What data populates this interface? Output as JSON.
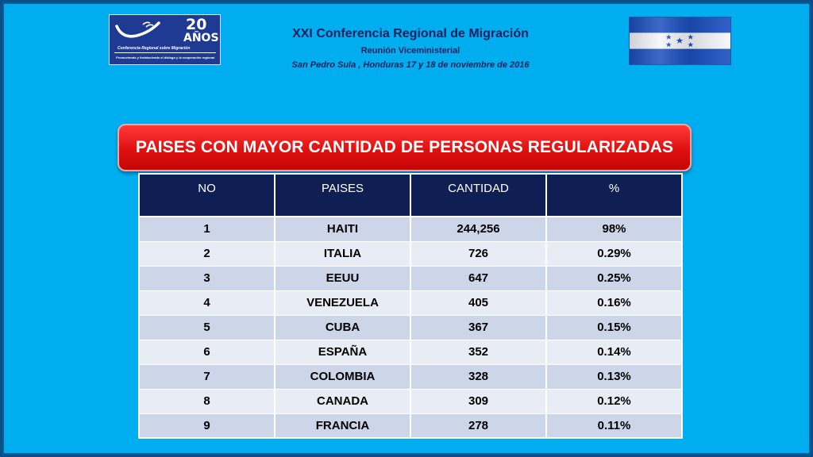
{
  "logo": {
    "number": "20",
    "years": "AÑOS",
    "org_name": "Conferencia Regional sobre Migración",
    "tagline": "Promoviendo y fortaleciendo el diálogo y la cooperación regional",
    "colors": {
      "background": "#1f3a93",
      "text": "#ffffff"
    }
  },
  "header": {
    "title": "XXI Conferencia Regional de Migración",
    "subtitle": "Reunión Viceministerial",
    "location_date": "San Pedro Sula , Honduras  17 y 18 de noviembre de 2016"
  },
  "flag": {
    "country_icon": "honduras-flag-icon",
    "colors": {
      "stripe": "#1a4fbf",
      "center": "#ffffff",
      "stars": "#1a4fbf"
    }
  },
  "banner": {
    "title": "PAISES CON MAYOR CANTIDAD DE PERSONAS REGULARIZADAS",
    "color": "#e01010"
  },
  "table": {
    "columns": [
      "NO",
      "PAISES",
      "CANTIDAD",
      "%"
    ],
    "rows": [
      [
        "1",
        "HAITI",
        "244,256",
        "98%"
      ],
      [
        "2",
        "ITALIA",
        "726",
        "0.29%"
      ],
      [
        "3",
        "EEUU",
        "647",
        "0.25%"
      ],
      [
        "4",
        "VENEZUELA",
        "405",
        "0.16%"
      ],
      [
        "5",
        "CUBA",
        "367",
        "0.15%"
      ],
      [
        "6",
        "ESPAÑA",
        "352",
        "0.14%"
      ],
      [
        "7",
        "COLOMBIA",
        "328",
        "0.13%"
      ],
      [
        "8",
        "CANADA",
        "309",
        "0.12%"
      ],
      [
        "9",
        "FRANCIA",
        "278",
        "0.11%"
      ]
    ],
    "colors": {
      "header": "#0f1f54",
      "row_odd": "#cdd5e9",
      "row_even": "#e8ecf5"
    }
  },
  "colors": {
    "slide_background": "#00aeef",
    "header_text": "#0d1f5c"
  }
}
